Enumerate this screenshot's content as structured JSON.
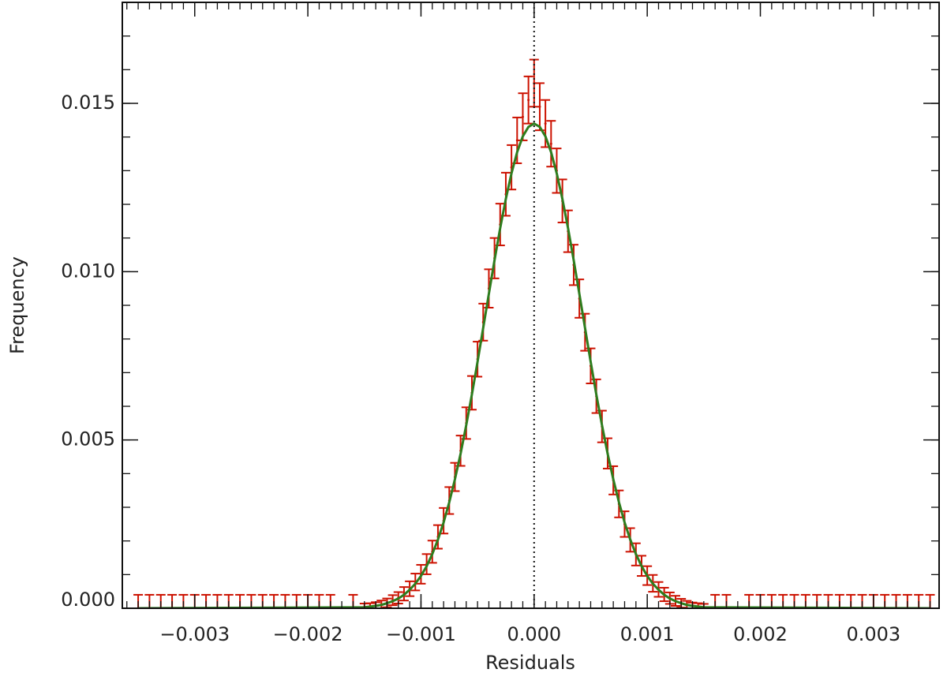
{
  "chart_data": {
    "type": "errorbar",
    "xlabel": "Residuals",
    "ylabel": "Frequency",
    "xlim": [
      -0.00364,
      0.00358
    ],
    "ylim": [
      0,
      0.018
    ],
    "xticks": [
      {
        "value": -0.003,
        "label": "−0.003"
      },
      {
        "value": -0.002,
        "label": "−0.002"
      },
      {
        "value": -0.001,
        "label": "−0.001"
      },
      {
        "value": 0,
        "label": "0.000"
      },
      {
        "value": 0.001,
        "label": "0.001"
      },
      {
        "value": 0.002,
        "label": "0.002"
      },
      {
        "value": 0.003,
        "label": "0.003"
      }
    ],
    "yticks": [
      {
        "value": 0,
        "label": "0.000"
      },
      {
        "value": 0.005,
        "label": "0.005"
      },
      {
        "value": 0.01,
        "label": "0.010"
      },
      {
        "value": 0.015,
        "label": "0.015"
      }
    ],
    "x_minor_step": 0.0001,
    "y_minor_step": 0.001,
    "vline": 0,
    "data": {
      "color": "#cc1100",
      "x": [
        -0.0035,
        -0.0034,
        -0.0033,
        -0.0032,
        -0.0031,
        -0.003,
        -0.0029,
        -0.0028,
        -0.0027,
        -0.0026,
        -0.0025,
        -0.0024,
        -0.0023,
        -0.0022,
        -0.0021,
        -0.002,
        -0.0019,
        -0.0018,
        -0.0016,
        -0.0015,
        -0.00145,
        -0.0014,
        -0.00135,
        -0.0013,
        -0.00125,
        -0.0012,
        -0.00115,
        -0.0011,
        -0.00105,
        -0.001,
        -0.00095,
        -0.0009,
        -0.00085,
        -0.0008,
        -0.00075,
        -0.0007,
        -0.00065,
        -0.0006,
        -0.00055,
        -0.0005,
        -0.00045,
        -0.0004,
        -0.00035,
        -0.0003,
        -0.00025,
        -0.0002,
        -0.00015,
        -0.0001,
        -5e-05,
        0,
        5e-05,
        0.0001,
        0.00015,
        0.0002,
        0.00025,
        0.0003,
        0.00035,
        0.0004,
        0.00045,
        0.0005,
        0.00055,
        0.0006,
        0.00065,
        0.0007,
        0.00075,
        0.0008,
        0.00085,
        0.0009,
        0.00095,
        0.001,
        0.00105,
        0.0011,
        0.00115,
        0.0012,
        0.00125,
        0.0013,
        0.00135,
        0.0014,
        0.00145,
        0.0015,
        0.0016,
        0.0017,
        0.0019,
        0.002,
        0.0021,
        0.0022,
        0.0023,
        0.0024,
        0.0025,
        0.0026,
        0.0027,
        0.0028,
        0.0029,
        0.003,
        0.0031,
        0.0032,
        0.0033,
        0.0034,
        0.0035
      ],
      "values": [
        0,
        0,
        0,
        0,
        0,
        0,
        0,
        0,
        0,
        0,
        0,
        0,
        0,
        0,
        0,
        0,
        0,
        0,
        0,
        4e-05,
        5e-05,
        8e-05,
        0.00011,
        0.00016,
        0.00024,
        0.00031,
        0.00043,
        0.00058,
        0.00078,
        0.00101,
        0.00131,
        0.00168,
        0.00212,
        0.0026,
        0.0032,
        0.0039,
        0.00468,
        0.0055,
        0.0064,
        0.0074,
        0.0085,
        0.0095,
        0.0104,
        0.0114,
        0.0123,
        0.0131,
        0.0139,
        0.0146,
        0.0151,
        0.0156,
        0.0149,
        0.0144,
        0.0138,
        0.013,
        0.0121,
        0.0112,
        0.0102,
        0.0092,
        0.0082,
        0.0072,
        0.0063,
        0.0054,
        0.0046,
        0.0038,
        0.0031,
        0.0025,
        0.00203,
        0.0016,
        0.00126,
        0.00097,
        0.00074,
        0.00056,
        0.00041,
        0.0003,
        0.00022,
        0.00015,
        0.0001,
        7e-05,
        5e-05,
        3e-05,
        0,
        0,
        0,
        0,
        0,
        0,
        0,
        0,
        0,
        0,
        0,
        0,
        0,
        0,
        0,
        0,
        0,
        0,
        0
      ],
      "errors": [
        0.0004,
        0.0004,
        0.0004,
        0.0004,
        0.0004,
        0.0004,
        0.0004,
        0.0004,
        0.0004,
        0.0004,
        0.0004,
        0.0004,
        0.0004,
        0.0004,
        0.0004,
        0.0004,
        0.0004,
        0.0004,
        0.0004,
        0.0001,
        0.0001,
        0.0001,
        0.00012,
        0.00013,
        0.00015,
        0.00017,
        0.0002,
        0.00022,
        0.00025,
        0.00028,
        0.0003,
        0.00033,
        0.00035,
        0.00038,
        0.0004,
        0.00042,
        0.00045,
        0.00047,
        0.0005,
        0.00052,
        0.00055,
        0.00057,
        0.0006,
        0.00062,
        0.00064,
        0.00066,
        0.00068,
        0.0007,
        0.0007,
        0.0007,
        0.0007,
        0.0007,
        0.00068,
        0.00066,
        0.00064,
        0.00062,
        0.0006,
        0.00057,
        0.00055,
        0.00052,
        0.0005,
        0.00047,
        0.00045,
        0.00042,
        0.0004,
        0.00038,
        0.00035,
        0.00033,
        0.0003,
        0.00028,
        0.00025,
        0.00022,
        0.0002,
        0.00017,
        0.00015,
        0.00013,
        0.00012,
        0.0001,
        0.0001,
        0.0001,
        0.0004,
        0.0004,
        0.0004,
        0.0004,
        0.0004,
        0.0004,
        0.0004,
        0.0004,
        0.0004,
        0.0004,
        0.0004,
        0.0004,
        0.0004,
        0.0004,
        0.0004,
        0.0004,
        0.0004,
        0.0004,
        0.0004
      ]
    },
    "fit": {
      "color": "#2e7d1e",
      "x": [
        -0.0035,
        -0.0015,
        -0.00145,
        -0.0014,
        -0.00135,
        -0.0013,
        -0.00125,
        -0.0012,
        -0.00115,
        -0.0011,
        -0.00105,
        -0.001,
        -0.00095,
        -0.0009,
        -0.00085,
        -0.0008,
        -0.00075,
        -0.0007,
        -0.00065,
        -0.0006,
        -0.00055,
        -0.0005,
        -0.00045,
        -0.0004,
        -0.00035,
        -0.0003,
        -0.00025,
        -0.0002,
        -0.00015,
        -0.0001,
        -5e-05,
        0,
        5e-05,
        0.0001,
        0.00015,
        0.0002,
        0.00025,
        0.0003,
        0.00035,
        0.0004,
        0.00045,
        0.0005,
        0.00055,
        0.0006,
        0.00065,
        0.0007,
        0.00075,
        0.0008,
        0.00085,
        0.0009,
        0.00095,
        0.001,
        0.00105,
        0.0011,
        0.00115,
        0.0012,
        0.00125,
        0.0013,
        0.00135,
        0.0014,
        0.00145,
        0.0015,
        0.0035
      ],
      "values": [
        0,
        3e-05,
        5e-05,
        7e-05,
        0.0001,
        0.00015,
        0.00021,
        0.00029,
        0.0004,
        0.00055,
        0.00073,
        0.00096,
        0.00125,
        0.00161,
        0.00204,
        0.00255,
        0.00315,
        0.00383,
        0.00459,
        0.00544,
        0.00635,
        0.00732,
        0.00833,
        0.00934,
        0.01034,
        0.01129,
        0.01216,
        0.01292,
        0.01355,
        0.01402,
        0.0143,
        0.0144,
        0.0143,
        0.01402,
        0.01355,
        0.01292,
        0.01216,
        0.01129,
        0.01034,
        0.00934,
        0.00833,
        0.00732,
        0.00635,
        0.00544,
        0.00459,
        0.00383,
        0.00315,
        0.00255,
        0.00204,
        0.00161,
        0.00125,
        0.00096,
        0.00073,
        0.00055,
        0.0004,
        0.00029,
        0.00021,
        0.00015,
        0.0001,
        7e-05,
        5e-05,
        3e-05,
        0
      ]
    }
  }
}
